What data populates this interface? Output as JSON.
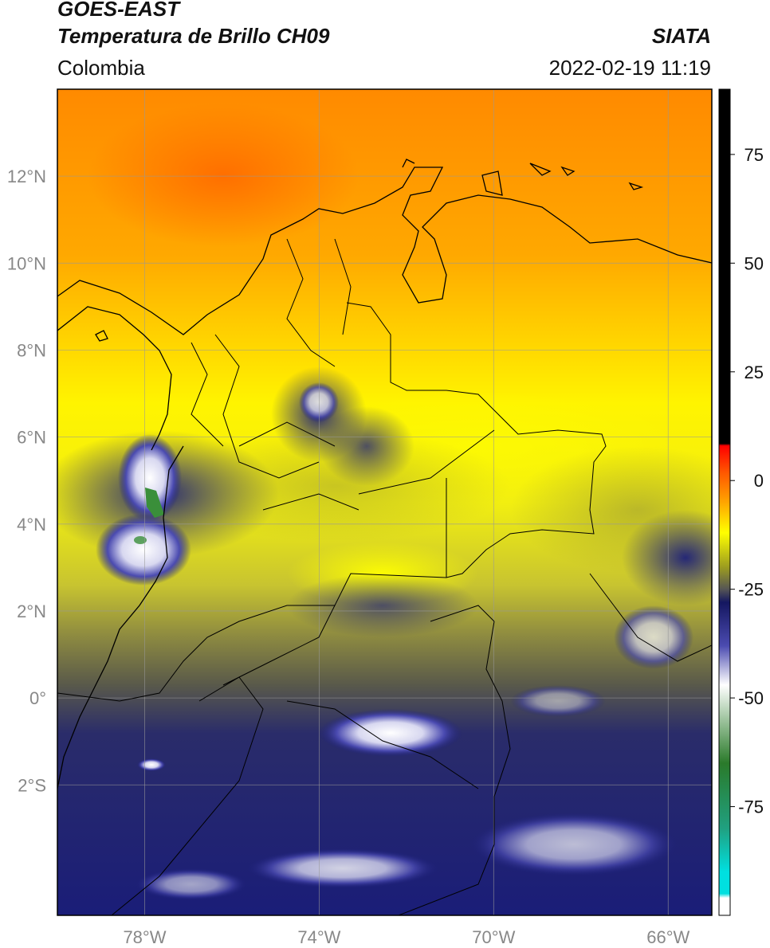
{
  "header": {
    "satellite": "GOES-EAST",
    "product": "Temperatura de Brillo CH09",
    "region": "Colombia",
    "source": "SIATA",
    "timestamp": "2022-02-19 11:19"
  },
  "map": {
    "extent_lon": [
      -80,
      -65
    ],
    "extent_lat": [
      -5,
      14
    ],
    "lat_ticks": [
      {
        "value": 12,
        "label": "12°N"
      },
      {
        "value": 10,
        "label": "10°N"
      },
      {
        "value": 8,
        "label": "8°N"
      },
      {
        "value": 6,
        "label": "6°N"
      },
      {
        "value": 4,
        "label": "4°N"
      },
      {
        "value": 2,
        "label": "2°N"
      },
      {
        "value": 0,
        "label": "0°"
      },
      {
        "value": -2,
        "label": "2°S"
      }
    ],
    "lon_ticks": [
      {
        "value": -78,
        "label": "78°W"
      },
      {
        "value": -74,
        "label": "74°W"
      },
      {
        "value": -70,
        "label": "70°W"
      },
      {
        "value": -66,
        "label": "66°W"
      }
    ],
    "colors": {
      "warm_orange": "#ff7a00",
      "yellow": "#fff200",
      "olive": "#b5b43a",
      "grey": "#555555",
      "navy": "#1c1f7a",
      "white": "#ffffff",
      "green": "#3a8f3a",
      "border": "#000000",
      "grid": "#999999"
    }
  },
  "colorbar": {
    "range": [
      -100,
      90
    ],
    "ticks": [
      {
        "value": 75,
        "label": "75"
      },
      {
        "value": 50,
        "label": "50"
      },
      {
        "value": 25,
        "label": "25"
      },
      {
        "value": 0,
        "label": "0"
      },
      {
        "value": -25,
        "label": "-25"
      },
      {
        "value": -50,
        "label": "-50"
      },
      {
        "value": -75,
        "label": "-75"
      }
    ],
    "stops": [
      {
        "value": 90,
        "color": "#000000"
      },
      {
        "value": 8.5,
        "color": "#000000"
      },
      {
        "value": 8,
        "color": "#ff0000"
      },
      {
        "value": 2,
        "color": "#ff5500"
      },
      {
        "value": -5,
        "color": "#ffa500"
      },
      {
        "value": -12,
        "color": "#ffff00"
      },
      {
        "value": -20,
        "color": "#9b9b20"
      },
      {
        "value": -25,
        "color": "#555555"
      },
      {
        "value": -28,
        "color": "#141760"
      },
      {
        "value": -38,
        "color": "#4b4bb0"
      },
      {
        "value": -47,
        "color": "#ffffff"
      },
      {
        "value": -55,
        "color": "#9ec49e"
      },
      {
        "value": -65,
        "color": "#2a7a2a"
      },
      {
        "value": -80,
        "color": "#20a080"
      },
      {
        "value": -90,
        "color": "#00e0e0"
      },
      {
        "value": -95,
        "color": "#00e0e0"
      },
      {
        "value": -96,
        "color": "#ffffff"
      },
      {
        "value": -100,
        "color": "#ffffff"
      }
    ]
  }
}
